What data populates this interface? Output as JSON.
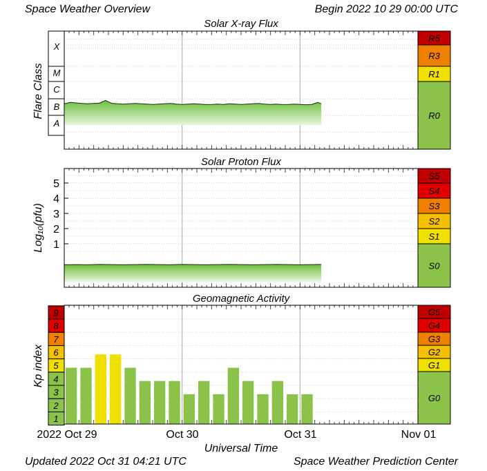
{
  "header": {
    "title": "Space Weather Overview",
    "begin": "Begin 2022 10 29 00:00 UTC"
  },
  "footer": {
    "updated": "Updated 2022 Oct 31 04:21 UTC",
    "source": "Space Weather Prediction Center"
  },
  "x_axis": {
    "label": "Universal Time",
    "ticks": [
      "2022 Oct 29",
      "Oct 30",
      "Oct 31",
      "Nov 01"
    ]
  },
  "colors": {
    "green": "#8bc34a",
    "yellow": "#f0e000",
    "amber": "#f5c000",
    "orange": "#f08000",
    "red": "#e00000",
    "dark_red": "#c00000",
    "grid": "#bbbbbb"
  },
  "chart_data": [
    {
      "type": "area",
      "title": "Solar X-ray Flux",
      "ylabel": "Flare Class",
      "y_classes": [
        "A",
        "B",
        "C",
        "M",
        "X"
      ],
      "scales": [
        {
          "label": "R5",
          "color": "#c00000"
        },
        {
          "label": "R3",
          "color": "#f08000"
        },
        {
          "label": "R1",
          "color": "#f0e000"
        },
        {
          "label": "R0",
          "color": "#8bc34a"
        }
      ],
      "x_range": [
        "2022-10-29",
        "2022-11-01"
      ],
      "series": [
        {
          "x_days": [
            0,
            0.05,
            0.1,
            0.15,
            0.2,
            0.25,
            0.3,
            0.35,
            0.4,
            0.45,
            0.5,
            0.55,
            0.6,
            0.65,
            0.7,
            0.75,
            0.8,
            0.85,
            0.9,
            0.95,
            1.0,
            1.05,
            1.1,
            1.15,
            1.2,
            1.25,
            1.3,
            1.35,
            1.4,
            1.45,
            1.5,
            1.55,
            1.6,
            1.65,
            1.7,
            1.75,
            1.8,
            1.85,
            1.9,
            1.95,
            2.0,
            2.05,
            2.1,
            2.15,
            2.18
          ],
          "class_level": [
            1.7,
            1.78,
            1.75,
            1.72,
            1.7,
            1.72,
            1.74,
            1.9,
            1.73,
            1.7,
            1.68,
            1.7,
            1.72,
            1.7,
            1.68,
            1.66,
            1.68,
            1.7,
            1.72,
            1.68,
            1.66,
            1.68,
            1.7,
            1.68,
            1.65,
            1.66,
            1.68,
            1.66,
            1.7,
            1.68,
            1.66,
            1.68,
            1.7,
            1.72,
            1.68,
            1.66,
            1.68,
            1.65,
            1.66,
            1.68,
            1.66,
            1.64,
            1.66,
            1.78,
            1.7
          ]
        }
      ]
    },
    {
      "type": "area",
      "title": "Solar Proton Flux",
      "ylabel": "Log₁₀(pfu)",
      "yticks": [
        1,
        2,
        3,
        4,
        5
      ],
      "ylim": [
        -1.3,
        5.8
      ],
      "scales": [
        {
          "label": "S5",
          "color": "#c00000"
        },
        {
          "label": "S4",
          "color": "#e00000"
        },
        {
          "label": "S3",
          "color": "#f08000"
        },
        {
          "label": "S2",
          "color": "#f5c000"
        },
        {
          "label": "S1",
          "color": "#f0e000"
        },
        {
          "label": "S0",
          "color": "#8bc34a"
        }
      ],
      "x_range": [
        "2022-10-29",
        "2022-11-01"
      ],
      "series": [
        {
          "x_days": [
            0,
            0.1,
            0.2,
            0.3,
            0.4,
            0.5,
            0.6,
            0.7,
            0.8,
            0.9,
            1.0,
            1.1,
            1.2,
            1.3,
            1.4,
            1.5,
            1.6,
            1.7,
            1.8,
            1.9,
            2.0,
            2.1,
            2.18
          ],
          "log_pfu": [
            -0.38,
            -0.37,
            -0.38,
            -0.36,
            -0.37,
            -0.38,
            -0.37,
            -0.36,
            -0.37,
            -0.38,
            -0.36,
            -0.37,
            -0.38,
            -0.37,
            -0.36,
            -0.37,
            -0.38,
            -0.37,
            -0.36,
            -0.37,
            -0.38,
            -0.37,
            -0.36
          ]
        }
      ]
    },
    {
      "type": "bar",
      "title": "Geomagnetic Activity",
      "ylabel": "Kp index",
      "yticks": [
        1,
        2,
        3,
        4,
        5,
        6,
        7,
        8,
        9
      ],
      "ylim": [
        0.5,
        9.5
      ],
      "scales": [
        {
          "label": "G5",
          "color": "#c00000"
        },
        {
          "label": "G4",
          "color": "#e00000"
        },
        {
          "label": "G3",
          "color": "#f08000"
        },
        {
          "label": "G2",
          "color": "#f5c000"
        },
        {
          "label": "G1",
          "color": "#f0e000"
        },
        {
          "label": "G0",
          "color": "#8bc34a"
        }
      ],
      "kp_tick_colors": [
        "#8bc34a",
        "#8bc34a",
        "#8bc34a",
        "#8bc34a",
        "#f0e000",
        "#f5c000",
        "#f08000",
        "#e00000",
        "#c00000"
      ],
      "x_range": [
        "2022-10-29",
        "2022-11-01"
      ],
      "bar_width_hours": 3,
      "values": [
        4.33,
        4.33,
        5.33,
        5.33,
        4.33,
        3.33,
        3.33,
        3.33,
        2.33,
        3.33,
        2.33,
        4.33,
        3.33,
        2.33,
        3.33,
        2.33,
        2.33
      ]
    }
  ]
}
